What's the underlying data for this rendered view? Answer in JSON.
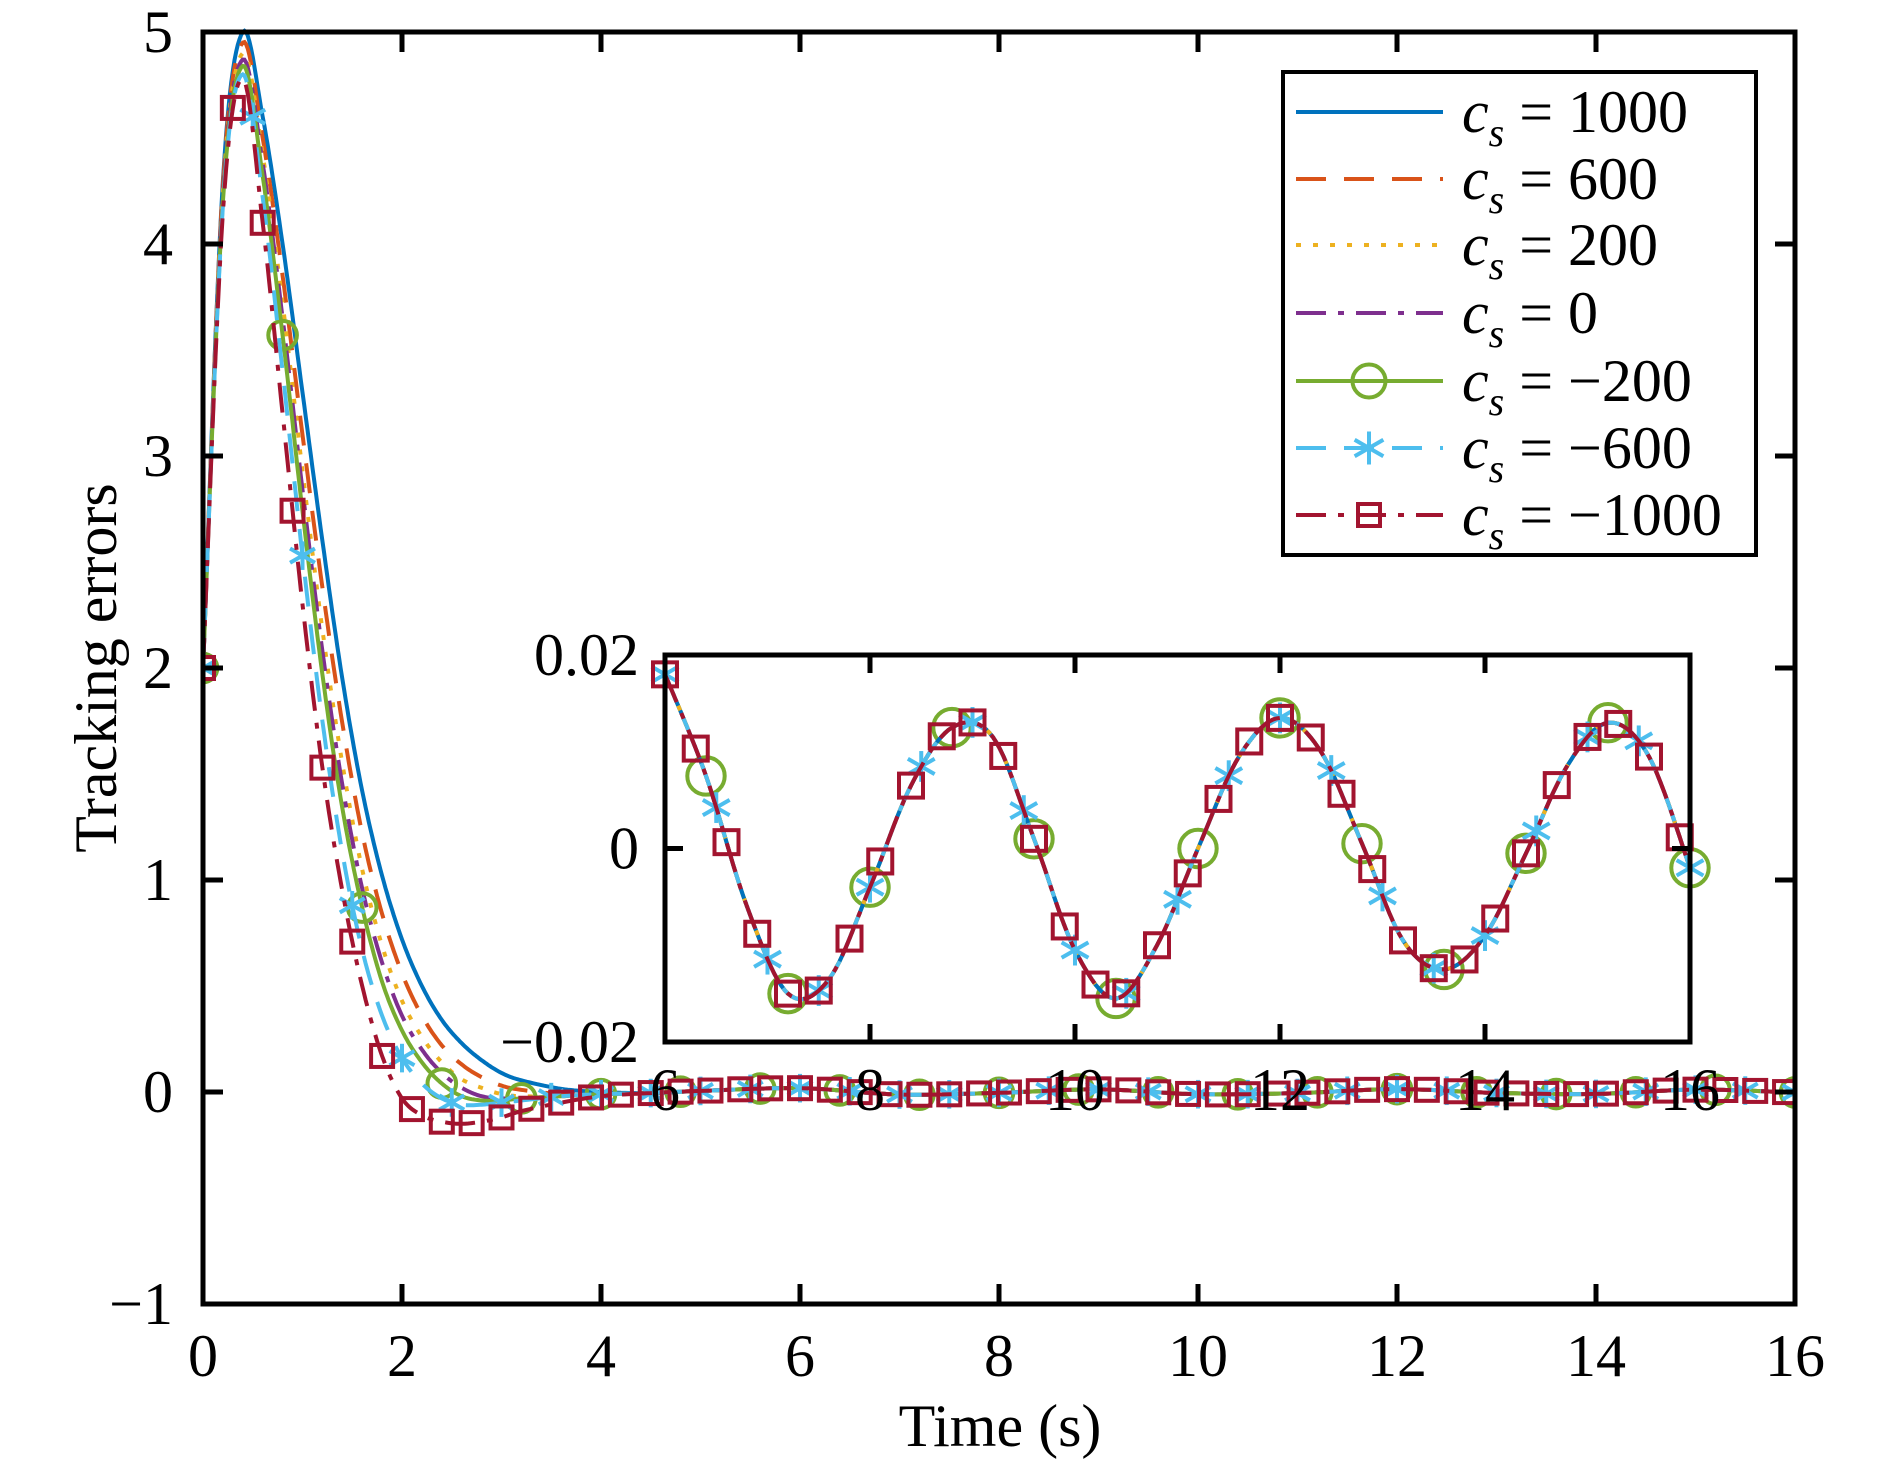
{
  "chart_data": [
    {
      "type": "line",
      "xlabel": "Time (s)",
      "ylabel": "Tracking errors",
      "xlim": [
        0,
        16
      ],
      "ylim": [
        -1,
        5
      ],
      "xticks": [
        "0",
        "2",
        "4",
        "6",
        "8",
        "10",
        "12",
        "14",
        "16"
      ],
      "yticks": [
        "−1",
        "0",
        "1",
        "2",
        "3",
        "4",
        "5"
      ],
      "grid": false,
      "box": true,
      "legend_placement": "top-right",
      "x": [
        0,
        0.2,
        0.4,
        0.6,
        0.8,
        1.0,
        1.2,
        1.4,
        1.6,
        1.8,
        2.0,
        2.2,
        2.4,
        2.6,
        2.8,
        3.0,
        3.2,
        3.6,
        4.0,
        4.5,
        5,
        6,
        7,
        8,
        9,
        10,
        11,
        12,
        13,
        14,
        15,
        16
      ],
      "series": [
        {
          "name": "c_s = 1000",
          "legend": {
            "symbol": "c",
            "subscript": "s",
            "rest": " = 1000"
          },
          "color": "#0072BD",
          "line_style": "solid",
          "marker": "none",
          "values": [
            2,
            4.3,
            5.0,
            4.6,
            4.0,
            3.3,
            2.6,
            1.95,
            1.42,
            1.02,
            0.72,
            0.5,
            0.34,
            0.23,
            0.15,
            0.09,
            0.055,
            0.015,
            0,
            -0.005,
            0.005,
            0.018,
            -0.012,
            -0.004,
            0.0125,
            -0.0105,
            -0.005,
            0.0135,
            -0.0045,
            -0.009,
            0.011,
            -0.002
          ]
        },
        {
          "name": "c_s = 600",
          "legend": {
            "symbol": "c",
            "subscript": "s",
            "rest": " = 600"
          },
          "color": "#D95319",
          "line_style": "dashed",
          "marker": "none",
          "values": [
            2,
            4.28,
            4.95,
            4.5,
            3.85,
            3.1,
            2.38,
            1.74,
            1.22,
            0.84,
            0.56,
            0.36,
            0.22,
            0.13,
            0.07,
            0.03,
            0.01,
            -0.01,
            -0.01,
            -0.005,
            0.005,
            0.018,
            -0.012,
            -0.004,
            0.0125,
            -0.0105,
            -0.005,
            0.0135,
            -0.0045,
            -0.009,
            0.011,
            -0.002
          ]
        },
        {
          "name": "c_s = 200",
          "legend": {
            "symbol": "c",
            "subscript": "s",
            "rest": " = 200"
          },
          "color": "#EDB120",
          "line_style": "dotted",
          "marker": "none",
          "values": [
            2,
            4.25,
            4.9,
            4.42,
            3.72,
            2.93,
            2.18,
            1.55,
            1.05,
            0.69,
            0.43,
            0.26,
            0.14,
            0.06,
            0.02,
            -0.01,
            -0.02,
            -0.02,
            -0.01,
            -0.005,
            0.005,
            0.018,
            -0.012,
            -0.004,
            0.0125,
            -0.0105,
            -0.005,
            0.0135,
            -0.0045,
            -0.009,
            0.011,
            -0.002
          ]
        },
        {
          "name": "c_s = 0",
          "legend": {
            "symbol": "c",
            "subscript": "s",
            "rest": " = 0"
          },
          "color": "#7E2F8E",
          "line_style": "dash-dot",
          "marker": "none",
          "values": [
            2,
            4.23,
            4.87,
            4.38,
            3.65,
            2.84,
            2.08,
            1.45,
            0.96,
            0.61,
            0.36,
            0.2,
            0.09,
            0.02,
            -0.02,
            -0.03,
            -0.03,
            -0.02,
            -0.01,
            -0.005,
            0.005,
            0.018,
            -0.012,
            -0.004,
            0.0125,
            -0.0105,
            -0.005,
            0.0135,
            -0.0045,
            -0.009,
            0.011,
            -0.002
          ]
        },
        {
          "name": "c_s = −200",
          "legend": {
            "symbol": "c",
            "subscript": "s",
            "rest": " = −200"
          },
          "color": "#77AC30",
          "line_style": "solid",
          "marker": "circle",
          "marker_interval": 0.8,
          "values": [
            2,
            4.2,
            4.84,
            4.32,
            3.57,
            2.74,
            1.97,
            1.34,
            0.87,
            0.52,
            0.29,
            0.14,
            0.04,
            -0.02,
            -0.04,
            -0.04,
            -0.03,
            -0.02,
            -0.01,
            -0.005,
            0.005,
            0.018,
            -0.012,
            -0.004,
            0.0125,
            -0.0105,
            -0.005,
            0.0135,
            -0.0045,
            -0.009,
            0.011,
            -0.002
          ]
        },
        {
          "name": "c_s = −600",
          "legend": {
            "symbol": "c",
            "subscript": "s",
            "rest": " = −600"
          },
          "color": "#4DBEEE",
          "line_style": "dashed",
          "marker": "asterisk",
          "marker_interval": 0.5,
          "values": [
            2,
            4.18,
            4.8,
            4.22,
            3.4,
            2.53,
            1.75,
            1.13,
            0.67,
            0.36,
            0.16,
            0.04,
            -0.03,
            -0.06,
            -0.06,
            -0.05,
            -0.04,
            -0.02,
            -0.01,
            -0.005,
            0.005,
            0.018,
            -0.012,
            -0.004,
            0.0125,
            -0.0105,
            -0.005,
            0.0135,
            -0.0045,
            -0.009,
            0.011,
            -0.002
          ]
        },
        {
          "name": "c_s = −1000",
          "legend": {
            "symbol": "c",
            "subscript": "s",
            "rest": " = −1000"
          },
          "color": "#A2142F",
          "line_style": "dash-dot",
          "marker": "square",
          "marker_interval": 0.3,
          "values": [
            2,
            4.15,
            4.78,
            4.1,
            3.2,
            2.3,
            1.53,
            0.95,
            0.5,
            0.17,
            -0.03,
            -0.11,
            -0.14,
            -0.15,
            -0.14,
            -0.12,
            -0.09,
            -0.05,
            -0.02,
            -0.005,
            0.005,
            0.018,
            -0.012,
            -0.004,
            0.0125,
            -0.0105,
            -0.005,
            0.0135,
            -0.0045,
            -0.009,
            0.011,
            -0.002
          ]
        }
      ]
    },
    {
      "type": "line",
      "role": "inset",
      "xlim": [
        6,
        16
      ],
      "ylim": [
        -0.02,
        0.02
      ],
      "xticks": [
        "6",
        "8",
        "10",
        "12",
        "14",
        "16"
      ],
      "yticks": [
        "−0.02",
        "0",
        "0.02"
      ],
      "grid": false,
      "box": true,
      "x": [
        6.0,
        6.4,
        6.8,
        7.2,
        7.6,
        8.0,
        8.4,
        8.8,
        9.2,
        9.6,
        10.0,
        10.4,
        10.8,
        11.2,
        11.6,
        12.0,
        12.4,
        12.8,
        13.2,
        13.6,
        14.0,
        14.4,
        14.8,
        15.2,
        15.6,
        16.0
      ],
      "values_all_series": [
        0.018,
        0.0075,
        -0.006,
        -0.015,
        -0.0135,
        -0.004,
        0.0065,
        0.0125,
        0.0115,
        0.001,
        -0.0105,
        -0.0155,
        -0.01,
        0.0,
        0.0095,
        0.0135,
        0.01,
        0.0005,
        -0.0095,
        -0.0125,
        -0.009,
        -0.0005,
        0.0085,
        0.013,
        0.0095,
        -0.002
      ]
    }
  ]
}
